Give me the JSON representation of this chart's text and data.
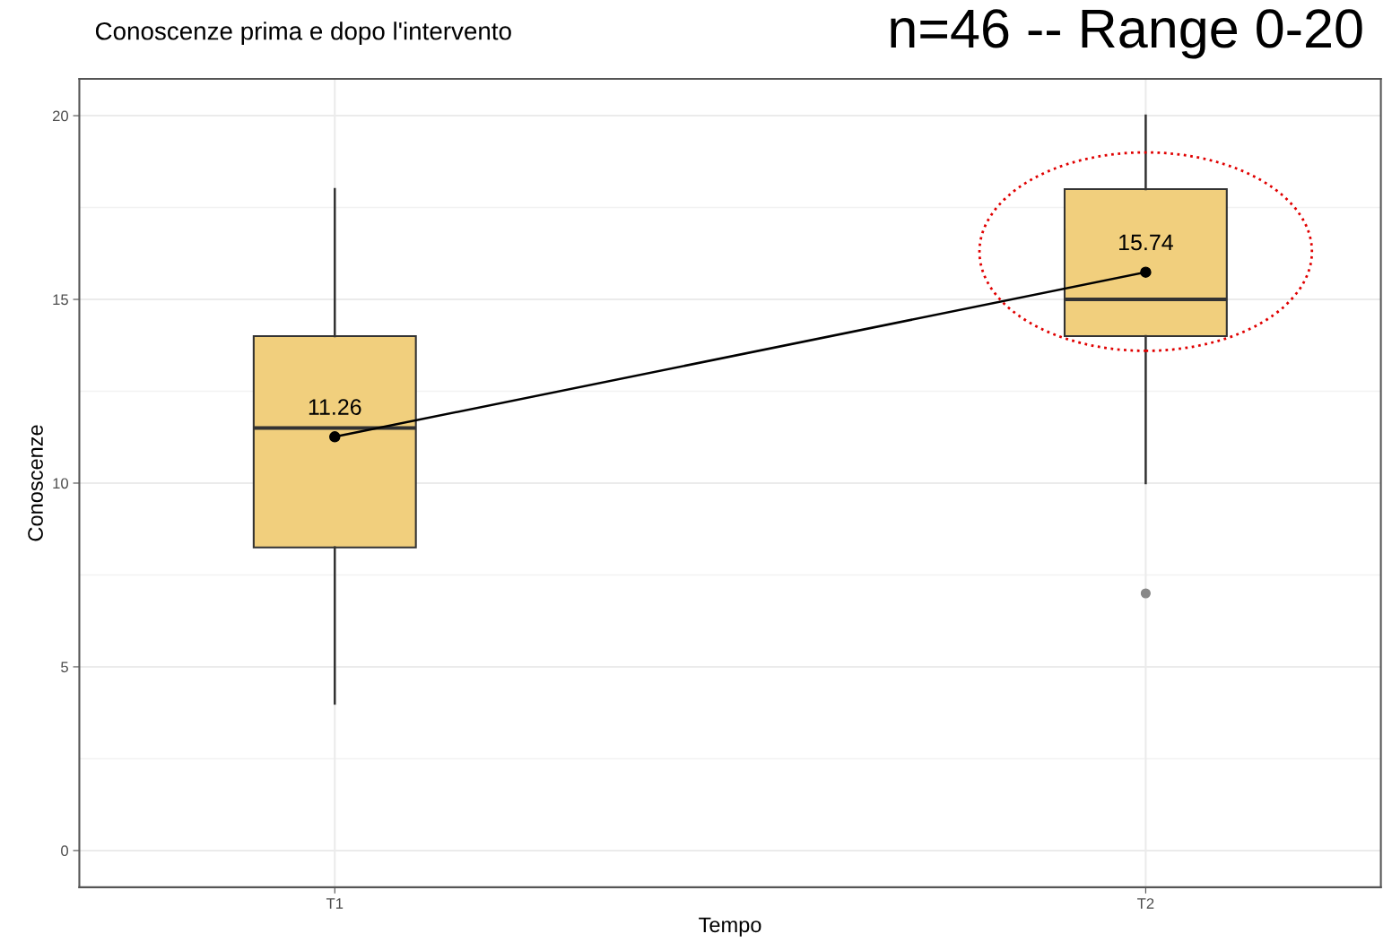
{
  "chart_data": {
    "type": "box",
    "title": "Conoscenze prima e dopo l'intervento",
    "xlabel": "Tempo",
    "ylabel": "Conoscenze",
    "categories": [
      "T1",
      "T2"
    ],
    "series": [
      {
        "color": "#f1cf7d",
        "boxes": [
          {
            "low": 4,
            "q1": 8.25,
            "median": 11.5,
            "q3": 14,
            "high": 18
          },
          {
            "low": 10,
            "q1": 14,
            "median": 15,
            "q3": 18,
            "high": 20,
            "outliers": [
              7
            ]
          }
        ]
      },
      {
        "type": "line",
        "color": "#000000",
        "marker": "circle",
        "values": [
          11.26,
          15.74
        ],
        "value_labels": [
          "11.26",
          "15.74"
        ]
      }
    ],
    "ylim": [
      -1,
      21
    ],
    "yticks": [
      0,
      5,
      10,
      15,
      20
    ],
    "grid": true,
    "annotations": [
      "n=46 -- Range 0-20"
    ]
  }
}
